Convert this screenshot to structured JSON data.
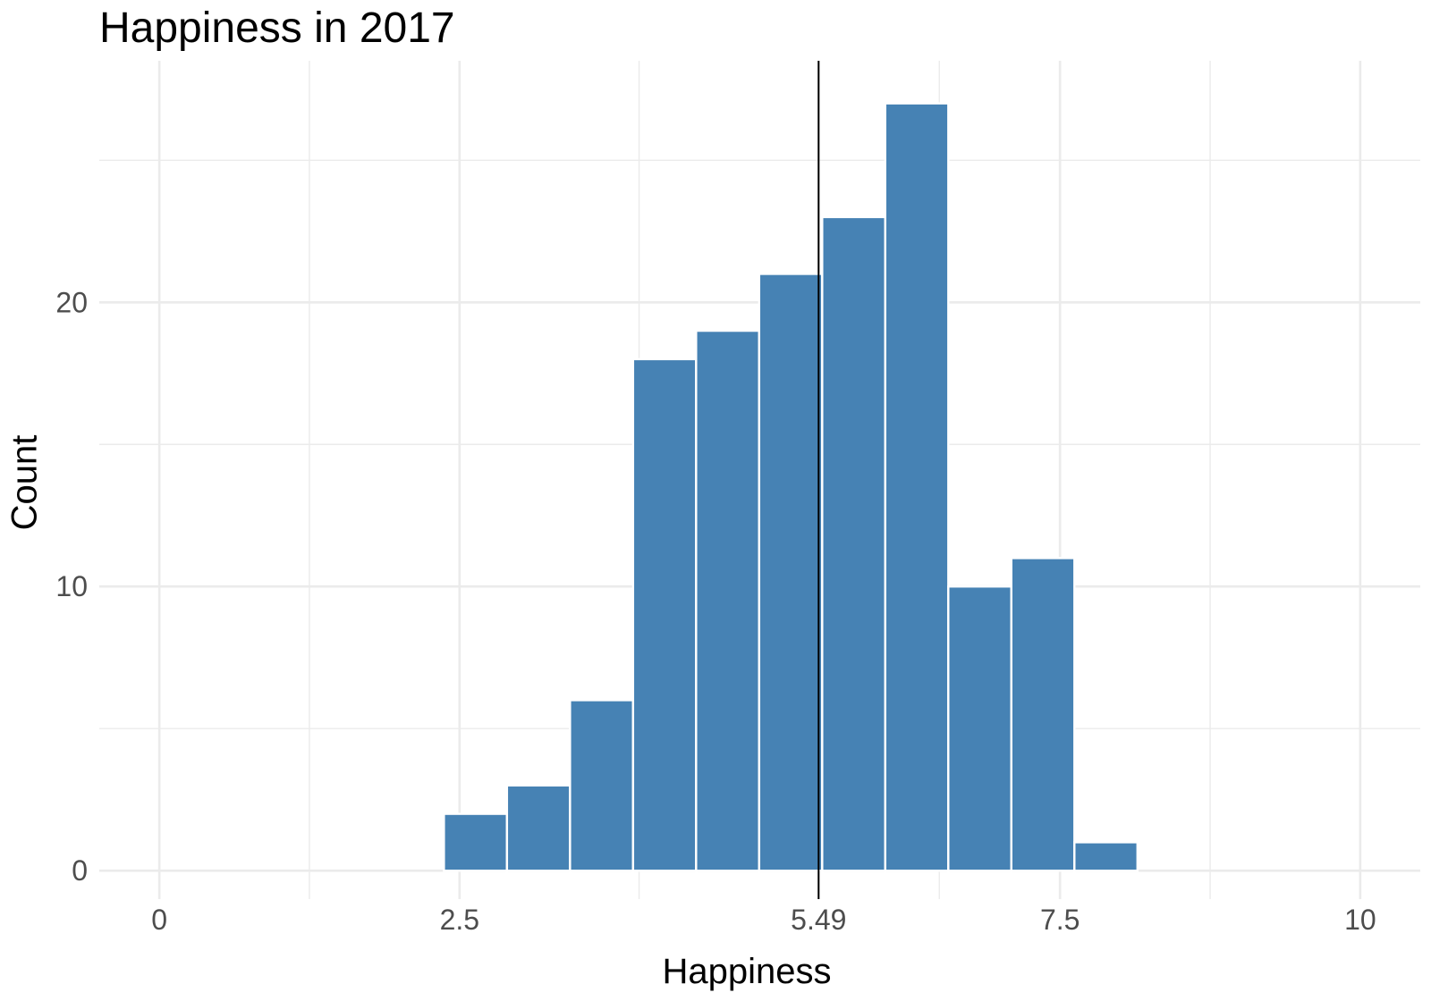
{
  "chart_data": {
    "type": "bar",
    "title": "Happiness in 2017",
    "xlabel": "Happiness",
    "ylabel": "Count",
    "xlim": [
      -0.5,
      10.5
    ],
    "ylim": [
      -1,
      28.5
    ],
    "x_ticks": [
      {
        "value": 0,
        "label": "0"
      },
      {
        "value": 2.5,
        "label": "2.5"
      },
      {
        "value": 5.49,
        "label": "5.49"
      },
      {
        "value": 7.5,
        "label": "7.5"
      },
      {
        "value": 10,
        "label": "10"
      }
    ],
    "y_ticks": [
      {
        "value": 0,
        "label": "0"
      },
      {
        "value": 10,
        "label": "10"
      },
      {
        "value": 20,
        "label": "20"
      }
    ],
    "bins": [
      {
        "x0": 2.37,
        "x1": 2.895,
        "count": 2
      },
      {
        "x0": 2.895,
        "x1": 3.42,
        "count": 3
      },
      {
        "x0": 3.42,
        "x1": 3.945,
        "count": 6
      },
      {
        "x0": 3.945,
        "x1": 4.47,
        "count": 18
      },
      {
        "x0": 4.47,
        "x1": 4.995,
        "count": 19
      },
      {
        "x0": 4.995,
        "x1": 5.52,
        "count": 21
      },
      {
        "x0": 5.52,
        "x1": 6.045,
        "count": 23
      },
      {
        "x0": 6.045,
        "x1": 6.57,
        "count": 27
      },
      {
        "x0": 6.57,
        "x1": 7.095,
        "count": 10
      },
      {
        "x0": 7.095,
        "x1": 7.62,
        "count": 11
      },
      {
        "x0": 7.62,
        "x1": 8.145,
        "count": 1
      }
    ],
    "mean_line": {
      "value": 5.49
    },
    "grid": true,
    "colors": {
      "bar_fill": "#4682b4",
      "bar_outline": "#ffffff",
      "mean_line": "#000000",
      "grid": "#ebebeb"
    }
  }
}
